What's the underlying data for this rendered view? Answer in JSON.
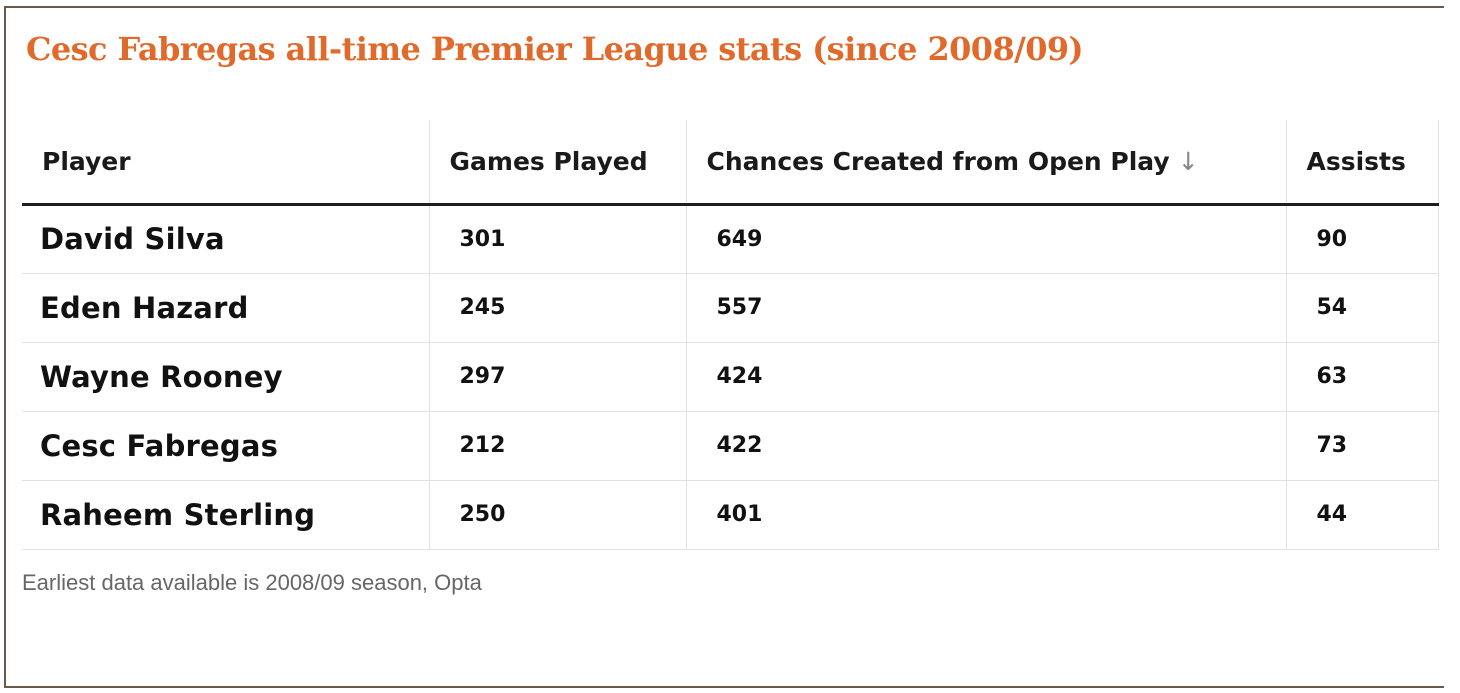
{
  "colors": {
    "title": "#e06a2b",
    "frame": "#6b5a4a",
    "header_rule": "#1e1e1e",
    "grid": "#e2e2e2",
    "source_text": "#666666"
  },
  "chart_data": {
    "type": "table",
    "title": "Cesc Fabregas all-time Premier League stats (since 2008/09)",
    "columns": [
      "Player",
      "Games Played",
      "Chances Created from Open Play",
      "Assists"
    ],
    "sort_indicator": "↓",
    "sorted_column": "Chances Created from Open Play",
    "rows": [
      [
        "David Silva",
        "301",
        "649",
        "90"
      ],
      [
        "Eden Hazard",
        "245",
        "557",
        "54"
      ],
      [
        "Wayne Rooney",
        "297",
        "424",
        "63"
      ],
      [
        "Cesc Fabregas",
        "212",
        "422",
        "73"
      ],
      [
        "Raheem Sterling",
        "250",
        "401",
        "44"
      ]
    ],
    "source": "Earliest data available is 2008/09 season, Opta"
  }
}
